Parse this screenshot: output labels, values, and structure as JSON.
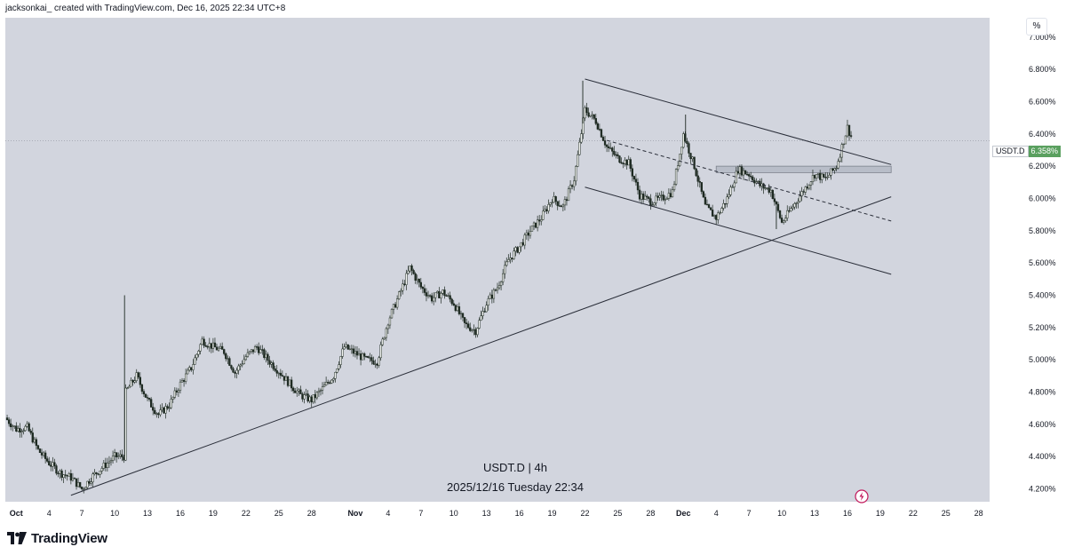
{
  "header": {
    "caption": "jacksonkai_ created with TradingView.com, Dec 16, 2025 22:34 UTC+8"
  },
  "toolbar": {
    "percent_label": "%"
  },
  "watermark": {
    "title": "USDT.D | 4h",
    "datetime": "2025/12/16 Tuesday 22:34"
  },
  "symbol_tag": {
    "symbol": "USDT.D",
    "value": "6.358%"
  },
  "footer": {
    "brand": "TradingView"
  },
  "colors": {
    "background": "#d2d5de",
    "candle": "#1e2a22",
    "price_tag": "#5aa05f",
    "lines": "#2a2e39"
  },
  "icons": [
    "tradingview-logo-icon",
    "flash-icon"
  ],
  "chart_data": {
    "type": "candlestick",
    "title": "USDT.D | 4h",
    "y_unit": "%",
    "ylim": [
      4.12,
      7.12
    ],
    "y_ticks": [
      "7.000%",
      "6.800%",
      "6.600%",
      "6.400%",
      "6.200%",
      "6.000%",
      "5.800%",
      "5.600%",
      "5.400%",
      "5.200%",
      "5.000%",
      "4.800%",
      "4.600%",
      "4.400%",
      "4.200%"
    ],
    "x_range": [
      "2025-09-30",
      "2025-12-29"
    ],
    "x_ticks": [
      {
        "label": "Oct",
        "date": "2025-10-01"
      },
      {
        "label": "4",
        "date": "2025-10-04"
      },
      {
        "label": "7",
        "date": "2025-10-07"
      },
      {
        "label": "10",
        "date": "2025-10-10"
      },
      {
        "label": "13",
        "date": "2025-10-13"
      },
      {
        "label": "16",
        "date": "2025-10-16"
      },
      {
        "label": "19",
        "date": "2025-10-19"
      },
      {
        "label": "22",
        "date": "2025-10-22"
      },
      {
        "label": "25",
        "date": "2025-10-25"
      },
      {
        "label": "28",
        "date": "2025-10-28"
      },
      {
        "label": "Nov",
        "date": "2025-11-01"
      },
      {
        "label": "4",
        "date": "2025-11-04"
      },
      {
        "label": "7",
        "date": "2025-11-07"
      },
      {
        "label": "10",
        "date": "2025-11-10"
      },
      {
        "label": "13",
        "date": "2025-11-13"
      },
      {
        "label": "16",
        "date": "2025-11-16"
      },
      {
        "label": "19",
        "date": "2025-11-19"
      },
      {
        "label": "22",
        "date": "2025-11-22"
      },
      {
        "label": "25",
        "date": "2025-11-25"
      },
      {
        "label": "28",
        "date": "2025-11-28"
      },
      {
        "label": "Dec",
        "date": "2025-12-01"
      },
      {
        "label": "4",
        "date": "2025-12-04"
      },
      {
        "label": "7",
        "date": "2025-12-07"
      },
      {
        "label": "10",
        "date": "2025-12-10"
      },
      {
        "label": "13",
        "date": "2025-12-13"
      },
      {
        "label": "16",
        "date": "2025-12-16"
      },
      {
        "label": "19",
        "date": "2025-12-19"
      },
      {
        "label": "22",
        "date": "2025-12-22"
      },
      {
        "label": "25",
        "date": "2025-12-25"
      },
      {
        "label": "28",
        "date": "2025-12-28"
      }
    ],
    "last_price": 6.358,
    "series": [
      {
        "close_path": [
          [
            "2025-09-30",
            4.64
          ],
          [
            "2025-10-01",
            4.57
          ],
          [
            "2025-10-02",
            4.58
          ],
          [
            "2025-10-03",
            4.44
          ],
          [
            "2025-10-04",
            4.36
          ],
          [
            "2025-10-05",
            4.3
          ],
          [
            "2025-10-06",
            4.27
          ],
          [
            "2025-10-07",
            4.2
          ],
          [
            "2025-10-08",
            4.28
          ],
          [
            "2025-10-09",
            4.34
          ],
          [
            "2025-10-10",
            4.4
          ],
          [
            "2025-10-10.9",
            4.4
          ],
          [
            "2025-10-11",
            4.8
          ],
          [
            "2025-10-12",
            4.9
          ],
          [
            "2025-10-13",
            4.75
          ],
          [
            "2025-10-14",
            4.66
          ],
          [
            "2025-10-15",
            4.72
          ],
          [
            "2025-10-16",
            4.85
          ],
          [
            "2025-10-17",
            4.95
          ],
          [
            "2025-10-18",
            5.12
          ],
          [
            "2025-10-19",
            5.08
          ],
          [
            "2025-10-20",
            5.05
          ],
          [
            "2025-10-21",
            4.92
          ],
          [
            "2025-10-22",
            5.02
          ],
          [
            "2025-10-23",
            5.08
          ],
          [
            "2025-10-24",
            5.0
          ],
          [
            "2025-10-25",
            4.93
          ],
          [
            "2025-10-26",
            4.85
          ],
          [
            "2025-10-27",
            4.78
          ],
          [
            "2025-10-28",
            4.75
          ],
          [
            "2025-10-29",
            4.82
          ],
          [
            "2025-10-30",
            4.9
          ],
          [
            "2025-10-31",
            5.08
          ],
          [
            "2025-11-01",
            5.04
          ],
          [
            "2025-11-02",
            5.0
          ],
          [
            "2025-11-03",
            4.99
          ],
          [
            "2025-11-04",
            5.24
          ],
          [
            "2025-11-05",
            5.4
          ],
          [
            "2025-11-06",
            5.57
          ],
          [
            "2025-11-07",
            5.45
          ],
          [
            "2025-11-08",
            5.38
          ],
          [
            "2025-11-09",
            5.42
          ],
          [
            "2025-11-10",
            5.35
          ],
          [
            "2025-11-11",
            5.22
          ],
          [
            "2025-11-12",
            5.18
          ],
          [
            "2025-11-13",
            5.35
          ],
          [
            "2025-11-14",
            5.45
          ],
          [
            "2025-11-15",
            5.62
          ],
          [
            "2025-11-16",
            5.7
          ],
          [
            "2025-11-17",
            5.8
          ],
          [
            "2025-11-18",
            5.88
          ],
          [
            "2025-11-19",
            6.0
          ],
          [
            "2025-11-20",
            5.95
          ],
          [
            "2025-11-21",
            6.12
          ],
          [
            "2025-11-22",
            6.55
          ],
          [
            "2025-11-23",
            6.48
          ],
          [
            "2025-11-24",
            6.32
          ],
          [
            "2025-11-25",
            6.25
          ],
          [
            "2025-11-26",
            6.22
          ],
          [
            "2025-11-27",
            6.02
          ],
          [
            "2025-11-28",
            5.98
          ],
          [
            "2025-11-29",
            6.0
          ],
          [
            "2025-11-30",
            6.04
          ],
          [
            "2025-12-01",
            6.4
          ],
          [
            "2025-12-02",
            6.2
          ],
          [
            "2025-12-03",
            5.95
          ],
          [
            "2025-12-04",
            5.88
          ],
          [
            "2025-12-05",
            6.0
          ],
          [
            "2025-12-06",
            6.18
          ],
          [
            "2025-12-07",
            6.15
          ],
          [
            "2025-12-08",
            6.08
          ],
          [
            "2025-12-09",
            6.05
          ],
          [
            "2025-12-10",
            5.85
          ],
          [
            "2025-12-11",
            5.95
          ],
          [
            "2025-12-12",
            6.05
          ],
          [
            "2025-12-13",
            6.15
          ],
          [
            "2025-12-14",
            6.12
          ],
          [
            "2025-12-15",
            6.2
          ],
          [
            "2025-12-16",
            6.44
          ],
          [
            "2025-12-16.5",
            6.358
          ]
        ],
        "spikes": [
          {
            "date": "2025-10-10.9",
            "high": 5.4
          },
          {
            "date": "2025-11-21.8",
            "high": 6.73
          },
          {
            "date": "2025-12-01.2",
            "high": 6.52
          },
          {
            "date": "2025-12-09.5",
            "low": 5.81
          }
        ]
      }
    ],
    "annotations": {
      "trendlines": [
        {
          "name": "rising-support",
          "from": [
            "2025-10-06",
            4.16
          ],
          "to": [
            "2025-12-20",
            6.01
          ]
        },
        {
          "name": "upper-channel",
          "from": [
            "2025-11-22",
            6.74
          ],
          "to": [
            "2025-12-20",
            6.21
          ]
        },
        {
          "name": "lower-channel",
          "from": [
            "2025-11-22",
            6.07
          ],
          "to": [
            "2025-12-20",
            5.53
          ]
        },
        {
          "name": "mid-channel-dashed",
          "from": [
            "2025-11-24",
            6.36
          ],
          "to": [
            "2025-12-20",
            5.86
          ]
        }
      ],
      "zone": {
        "from": "2025-12-04",
        "to": "2025-12-20",
        "low": 6.16,
        "high": 6.2
      },
      "price_line": 6.358
    }
  }
}
